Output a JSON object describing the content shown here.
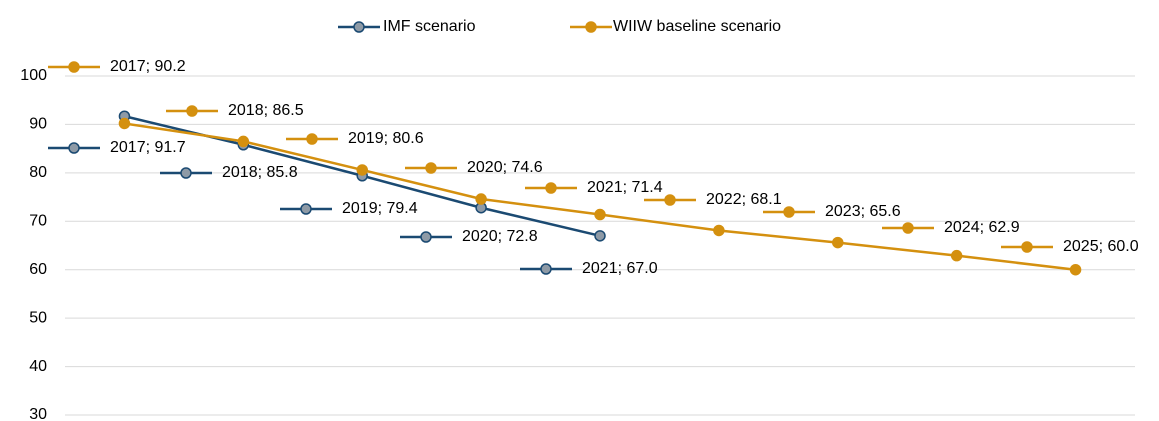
{
  "chart_data": {
    "type": "line",
    "categories": [
      null,
      null,
      null,
      null,
      null,
      null,
      null,
      null,
      null
    ],
    "series": [
      {
        "name": "IMF scenario",
        "color": "#1b4a72",
        "marker_fill": "#8e9aa6",
        "values": [
          91.7,
          85.8,
          79.4,
          72.8,
          67.0,
          null,
          null,
          null,
          null
        ],
        "value_labels": [
          "2017; 91.7",
          "2018; 85.8",
          "2019; 79.4",
          "2020; 72.8",
          "2021; 67.0",
          null,
          null,
          null,
          null
        ]
      },
      {
        "name": "WIIW baseline scenario",
        "color": "#d4900f",
        "marker_fill": "#d4900f",
        "values": [
          90.2,
          86.5,
          80.6,
          74.6,
          71.4,
          68.1,
          65.6,
          62.9,
          60.0
        ],
        "value_labels": [
          "2017; 90.2",
          "2018; 86.5",
          "2019; 80.6",
          "2020; 74.6",
          "2021; 71.4",
          "2022; 68.1",
          "2023; 65.6",
          "2024; 62.9",
          "2025; 60.0"
        ]
      }
    ],
    "ylim": [
      30,
      100
    ],
    "yticks": [
      30,
      40,
      50,
      60,
      70,
      80,
      90,
      100
    ],
    "grid": true,
    "legend": "top"
  }
}
